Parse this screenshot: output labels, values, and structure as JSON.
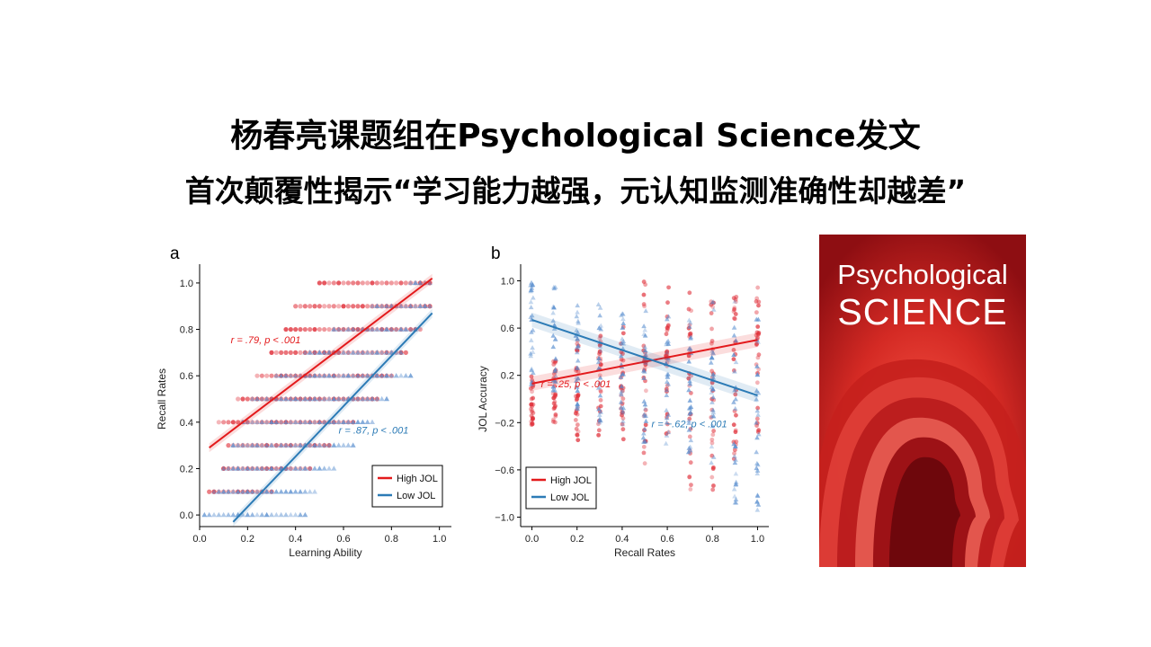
{
  "slide": {
    "title_line1": "杨春亮课题组在Psychological Science发文",
    "title_line2": "首次颠覆性揭示“学习能力越强，元认知监测准确性却越差”"
  },
  "colors": {
    "high": "#e31a1c",
    "high_points": "#e0303a",
    "low": "#2c7bb6",
    "low_points": "#5a8fcf",
    "cover_bg": "#b3161c"
  },
  "cover": {
    "line1": "Psychological",
    "line2": "SCIENCE"
  },
  "chart_data": [
    {
      "type": "scatter",
      "panel_label": "a",
      "xlabel": "Learning Ability",
      "ylabel": "Recall Rates",
      "xlim": [
        0,
        1.05
      ],
      "ylim": [
        -0.05,
        1.05
      ],
      "xticks": [
        0.0,
        0.2,
        0.4,
        0.6,
        0.8,
        1.0
      ],
      "yticks": [
        0.0,
        0.2,
        0.4,
        0.6,
        0.8,
        1.0
      ],
      "xtick_labels": [
        "0.0",
        "0.2",
        "0.4",
        "0.6",
        "0.8",
        "1.0"
      ],
      "ytick_labels": [
        "0.0",
        "0.2",
        "0.4",
        "0.6",
        "0.8",
        "1.0"
      ],
      "legend": {
        "position": "bottom-right",
        "items": [
          "High JOL",
          "Low JOL"
        ]
      },
      "series": [
        {
          "name": "High JOL",
          "marker": "circle",
          "rows": [
            {
              "y": 1.0,
              "x_start": 0.5,
              "x_end": 0.96
            },
            {
              "y": 0.9,
              "x_start": 0.4,
              "x_end": 0.96
            },
            {
              "y": 0.8,
              "x_start": 0.36,
              "x_end": 0.92
            },
            {
              "y": 0.7,
              "x_start": 0.3,
              "x_end": 0.86
            },
            {
              "y": 0.6,
              "x_start": 0.24,
              "x_end": 0.8
            },
            {
              "y": 0.5,
              "x_start": 0.16,
              "x_end": 0.74
            },
            {
              "y": 0.4,
              "x_start": 0.08,
              "x_end": 0.64
            },
            {
              "y": 0.3,
              "x_start": 0.12,
              "x_end": 0.54
            },
            {
              "y": 0.2,
              "x_start": 0.1,
              "x_end": 0.46
            },
            {
              "y": 0.1,
              "x_start": 0.04,
              "x_end": 0.3
            }
          ],
          "fit": {
            "x": [
              0.04,
              0.97
            ],
            "y": [
              0.29,
              1.02
            ]
          },
          "annotation": {
            "text": "r = .79, p < .001",
            "x": 0.13,
            "y": 0.74
          }
        },
        {
          "name": "Low JOL",
          "marker": "triangle",
          "rows": [
            {
              "y": 1.0,
              "x_start": 0.88,
              "x_end": 0.96
            },
            {
              "y": 0.9,
              "x_start": 0.72,
              "x_end": 0.96
            },
            {
              "y": 0.8,
              "x_start": 0.56,
              "x_end": 0.9
            },
            {
              "y": 0.7,
              "x_start": 0.44,
              "x_end": 0.84
            },
            {
              "y": 0.6,
              "x_start": 0.32,
              "x_end": 0.88
            },
            {
              "y": 0.5,
              "x_start": 0.22,
              "x_end": 0.78
            },
            {
              "y": 0.4,
              "x_start": 0.18,
              "x_end": 0.72
            },
            {
              "y": 0.3,
              "x_start": 0.14,
              "x_end": 0.64
            },
            {
              "y": 0.2,
              "x_start": 0.1,
              "x_end": 0.56
            },
            {
              "y": 0.1,
              "x_start": 0.06,
              "x_end": 0.48
            },
            {
              "y": 0.0,
              "x_start": 0.02,
              "x_end": 0.44
            }
          ],
          "fit": {
            "x": [
              0.14,
              0.97
            ],
            "y": [
              -0.03,
              0.87
            ]
          },
          "annotation": {
            "text": "r = .87, p < .001",
            "x": 0.58,
            "y": 0.35
          }
        }
      ]
    },
    {
      "type": "scatter",
      "panel_label": "b",
      "xlabel": "Recall Rates",
      "ylabel": "JOL Accuracy",
      "xlim": [
        -0.05,
        1.05
      ],
      "ylim": [
        -1.08,
        1.08
      ],
      "xticks": [
        0.0,
        0.2,
        0.4,
        0.6,
        0.8,
        1.0
      ],
      "yticks": [
        -1.0,
        -0.6,
        -0.2,
        0.2,
        0.6,
        1.0
      ],
      "xtick_labels": [
        "0.0",
        "0.2",
        "0.4",
        "0.6",
        "0.8",
        "1.0"
      ],
      "ytick_labels": [
        "−1.0",
        "−0.6",
        "−0.2",
        "0.2",
        "0.6",
        "1.0"
      ],
      "legend": {
        "position": "bottom-left",
        "items": [
          "High JOL",
          "Low JOL"
        ]
      },
      "series": [
        {
          "name": "High JOL",
          "marker": "circle",
          "columns": [
            {
              "x": 0.0,
              "ymin": -0.25,
              "ymax": 0.2
            },
            {
              "x": 0.1,
              "ymin": -0.2,
              "ymax": 0.35
            },
            {
              "x": 0.2,
              "ymin": -0.45,
              "ymax": 0.5
            },
            {
              "x": 0.3,
              "ymin": -0.4,
              "ymax": 0.55
            },
            {
              "x": 0.4,
              "ymin": -0.35,
              "ymax": 0.7
            },
            {
              "x": 0.5,
              "ymin": -0.6,
              "ymax": 1.0
            },
            {
              "x": 0.6,
              "ymin": -0.4,
              "ymax": 0.95
            },
            {
              "x": 0.7,
              "ymin": -1.0,
              "ymax": 0.9
            },
            {
              "x": 0.8,
              "ymin": -0.8,
              "ymax": 0.85
            },
            {
              "x": 0.9,
              "ymin": -0.6,
              "ymax": 0.9
            },
            {
              "x": 1.0,
              "ymin": -0.3,
              "ymax": 0.95
            }
          ],
          "fit": {
            "x": [
              0.0,
              1.0
            ],
            "y": [
              0.13,
              0.5
            ]
          },
          "annotation": {
            "text": "r = .25, p < .001",
            "x": 0.04,
            "y": 0.1
          }
        },
        {
          "name": "Low JOL",
          "marker": "triangle",
          "columns": [
            {
              "x": 0.0,
              "ymin": 0.1,
              "ymax": 1.0
            },
            {
              "x": 0.1,
              "ymin": 0.05,
              "ymax": 0.95
            },
            {
              "x": 0.2,
              "ymin": -0.1,
              "ymax": 0.85
            },
            {
              "x": 0.3,
              "ymin": -0.2,
              "ymax": 0.8
            },
            {
              "x": 0.4,
              "ymin": -0.25,
              "ymax": 0.8
            },
            {
              "x": 0.5,
              "ymin": -0.4,
              "ymax": 0.75
            },
            {
              "x": 0.6,
              "ymin": -0.45,
              "ymax": 0.7
            },
            {
              "x": 0.7,
              "ymin": -0.5,
              "ymax": 0.75
            },
            {
              "x": 0.8,
              "ymin": -0.6,
              "ymax": 0.85
            },
            {
              "x": 0.9,
              "ymin": -0.95,
              "ymax": 0.85
            },
            {
              "x": 1.0,
              "ymin": -0.95,
              "ymax": 0.8
            }
          ],
          "fit": {
            "x": [
              0.0,
              1.0
            ],
            "y": [
              0.67,
              0.03
            ]
          },
          "annotation": {
            "text": "r = −.62, p < .001",
            "x": 0.53,
            "y": -0.24
          }
        }
      ]
    }
  ]
}
